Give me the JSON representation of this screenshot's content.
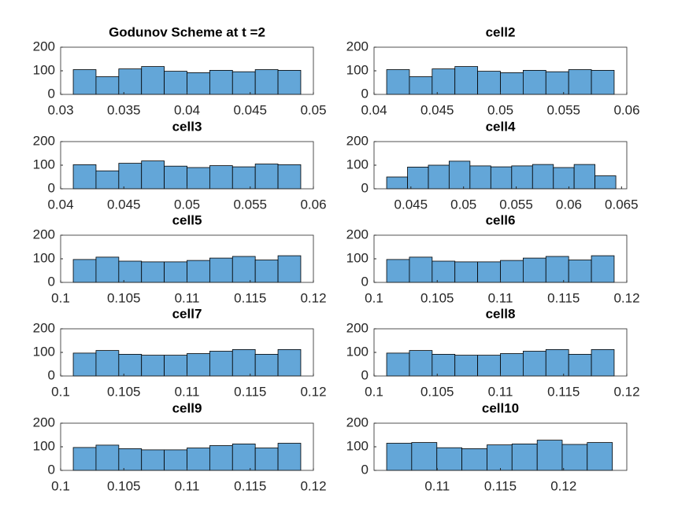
{
  "chart_data": [
    {
      "type": "histogram",
      "title": "Godunov Scheme at t =2",
      "bins": [
        0.031,
        0.0328,
        0.0346,
        0.0364,
        0.0382,
        0.04,
        0.0418,
        0.0436,
        0.0454,
        0.0472,
        0.049
      ],
      "values": [
        105,
        75,
        108,
        118,
        98,
        92,
        102,
        96,
        105,
        102
      ],
      "color": "#63a6d8",
      "xlim": [
        0.03,
        0.05
      ],
      "xticks": [
        0.03,
        0.035,
        0.04,
        0.045,
        0.05
      ],
      "ylim": [
        0,
        200
      ],
      "yticks": [
        0,
        100,
        200
      ]
    },
    {
      "type": "histogram",
      "title": "cell2",
      "bins": [
        0.041,
        0.0428,
        0.0446,
        0.0464,
        0.0482,
        0.05,
        0.0518,
        0.0536,
        0.0554,
        0.0572,
        0.059
      ],
      "values": [
        105,
        75,
        108,
        118,
        98,
        92,
        102,
        96,
        105,
        102
      ],
      "color": "#63a6d8",
      "xlim": [
        0.04,
        0.06
      ],
      "xticks": [
        0.04,
        0.045,
        0.05,
        0.055,
        0.06
      ],
      "ylim": [
        0,
        200
      ],
      "yticks": [
        0,
        100,
        200
      ]
    },
    {
      "type": "histogram",
      "title": "cell3",
      "bins": [
        0.041,
        0.0428,
        0.0446,
        0.0464,
        0.0482,
        0.05,
        0.0518,
        0.0536,
        0.0554,
        0.0572,
        0.059
      ],
      "values": [
        102,
        76,
        108,
        118,
        96,
        90,
        98,
        93,
        105,
        102
      ],
      "color": "#63a6d8",
      "xlim": [
        0.04,
        0.06
      ],
      "xticks": [
        0.04,
        0.045,
        0.05,
        0.055,
        0.06
      ],
      "ylim": [
        0,
        200
      ],
      "yticks": [
        0,
        100,
        200
      ]
    },
    {
      "type": "histogram",
      "title": "cell4",
      "bins": [
        0.0427,
        0.04468,
        0.04666,
        0.04863,
        0.05061,
        0.05259,
        0.05457,
        0.05655,
        0.05853,
        0.0605,
        0.06248,
        0.06446
      ],
      "values": [
        50,
        92,
        100,
        117,
        97,
        93,
        97,
        103,
        90,
        103,
        55
      ],
      "color": "#63a6d8",
      "xlim": [
        0.0415,
        0.0655
      ],
      "xticks": [
        0.045,
        0.05,
        0.055,
        0.06,
        0.065
      ],
      "ylim": [
        0,
        200
      ],
      "yticks": [
        0,
        100,
        200
      ]
    },
    {
      "type": "histogram",
      "title": "cell5",
      "bins": [
        0.101,
        0.1028,
        0.1046,
        0.1064,
        0.1082,
        0.11,
        0.1118,
        0.1136,
        0.1154,
        0.1172,
        0.119
      ],
      "values": [
        97,
        107,
        90,
        87,
        87,
        93,
        103,
        110,
        95,
        113
      ],
      "color": "#63a6d8",
      "xlim": [
        0.1,
        0.12
      ],
      "xticks": [
        0.1,
        0.105,
        0.11,
        0.115,
        0.12
      ],
      "ylim": [
        0,
        200
      ],
      "yticks": [
        0,
        100,
        200
      ]
    },
    {
      "type": "histogram",
      "title": "cell6",
      "bins": [
        0.101,
        0.1028,
        0.1046,
        0.1064,
        0.1082,
        0.11,
        0.1118,
        0.1136,
        0.1154,
        0.1172,
        0.119
      ],
      "values": [
        97,
        107,
        90,
        87,
        87,
        93,
        103,
        110,
        95,
        113
      ],
      "color": "#63a6d8",
      "xlim": [
        0.1,
        0.12
      ],
      "xticks": [
        0.1,
        0.105,
        0.11,
        0.115,
        0.12
      ],
      "ylim": [
        0,
        200
      ],
      "yticks": [
        0,
        100,
        200
      ]
    },
    {
      "type": "histogram",
      "title": "cell7",
      "bins": [
        0.101,
        0.1028,
        0.1046,
        0.1064,
        0.1082,
        0.11,
        0.1118,
        0.1136,
        0.1154,
        0.1172,
        0.119
      ],
      "values": [
        97,
        108,
        92,
        88,
        88,
        95,
        105,
        112,
        92,
        112
      ],
      "color": "#63a6d8",
      "xlim": [
        0.1,
        0.12
      ],
      "xticks": [
        0.1,
        0.105,
        0.11,
        0.115,
        0.12
      ],
      "ylim": [
        0,
        200
      ],
      "yticks": [
        0,
        100,
        200
      ]
    },
    {
      "type": "histogram",
      "title": "cell8",
      "bins": [
        0.101,
        0.1028,
        0.1046,
        0.1064,
        0.1082,
        0.11,
        0.1118,
        0.1136,
        0.1154,
        0.1172,
        0.119
      ],
      "values": [
        97,
        108,
        92,
        88,
        88,
        95,
        105,
        112,
        92,
        112
      ],
      "color": "#63a6d8",
      "xlim": [
        0.1,
        0.12
      ],
      "xticks": [
        0.1,
        0.105,
        0.11,
        0.115,
        0.12
      ],
      "ylim": [
        0,
        200
      ],
      "yticks": [
        0,
        100,
        200
      ]
    },
    {
      "type": "histogram",
      "title": "cell9",
      "bins": [
        0.101,
        0.1028,
        0.1046,
        0.1064,
        0.1082,
        0.11,
        0.1118,
        0.1136,
        0.1154,
        0.1172,
        0.119
      ],
      "values": [
        97,
        107,
        92,
        87,
        87,
        95,
        105,
        112,
        95,
        115
      ],
      "color": "#63a6d8",
      "xlim": [
        0.1,
        0.12
      ],
      "xticks": [
        0.1,
        0.105,
        0.11,
        0.115,
        0.12
      ],
      "ylim": [
        0,
        200
      ],
      "yticks": [
        0,
        100,
        200
      ]
    },
    {
      "type": "histogram",
      "title": "cell10",
      "bins": [
        0.106,
        0.10798,
        0.10997,
        0.11195,
        0.11394,
        0.11592,
        0.11791,
        0.11989,
        0.12187,
        0.12386
      ],
      "values": [
        115,
        118,
        96,
        92,
        108,
        112,
        128,
        110,
        118
      ],
      "color": "#63a6d8",
      "xlim": [
        0.105,
        0.125
      ],
      "xticks": [
        0.11,
        0.115,
        0.12
      ],
      "ylim": [
        0,
        200
      ],
      "yticks": [
        0,
        100,
        200
      ]
    }
  ]
}
